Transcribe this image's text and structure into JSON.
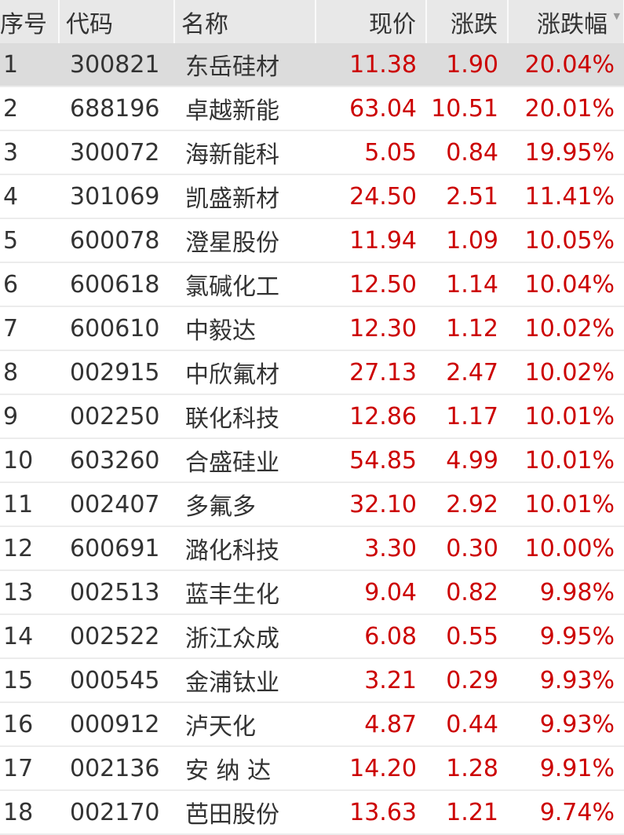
{
  "headers": [
    "序号",
    "代码",
    "名称",
    "现价",
    "涨跌",
    "涨跌幅"
  ],
  "sort_icon": "sort-desc-icon",
  "colors": {
    "up": "#cc0000",
    "header_bg": "#e8e8e8",
    "selected_bg": "#dcdcdc"
  },
  "rows": [
    [
      "1",
      "300821",
      "东岳硅材",
      "11.38",
      "1.90",
      "20.04%"
    ],
    [
      "2",
      "688196",
      "卓越新能",
      "63.04",
      "10.51",
      "20.01%"
    ],
    [
      "3",
      "300072",
      "海新能科",
      "5.05",
      "0.84",
      "19.95%"
    ],
    [
      "4",
      "301069",
      "凯盛新材",
      "24.50",
      "2.51",
      "11.41%"
    ],
    [
      "5",
      "600078",
      "澄星股份",
      "11.94",
      "1.09",
      "10.05%"
    ],
    [
      "6",
      "600618",
      "氯碱化工",
      "12.50",
      "1.14",
      "10.04%"
    ],
    [
      "7",
      "600610",
      "中毅达",
      "12.30",
      "1.12",
      "10.02%"
    ],
    [
      "8",
      "002915",
      "中欣氟材",
      "27.13",
      "2.47",
      "10.02%"
    ],
    [
      "9",
      "002250",
      "联化科技",
      "12.86",
      "1.17",
      "10.01%"
    ],
    [
      "10",
      "603260",
      "合盛硅业",
      "54.85",
      "4.99",
      "10.01%"
    ],
    [
      "11",
      "002407",
      "多氟多",
      "32.10",
      "2.92",
      "10.01%"
    ],
    [
      "12",
      "600691",
      "潞化科技",
      "3.30",
      "0.30",
      "10.00%"
    ],
    [
      "13",
      "002513",
      "蓝丰生化",
      "9.04",
      "0.82",
      "9.98%"
    ],
    [
      "14",
      "002522",
      "浙江众成",
      "6.08",
      "0.55",
      "9.95%"
    ],
    [
      "15",
      "000545",
      "金浦钛业",
      "3.21",
      "0.29",
      "9.93%"
    ],
    [
      "16",
      "000912",
      "泸天化",
      "4.87",
      "0.44",
      "9.93%"
    ],
    [
      "17",
      "002136",
      "安 纳 达",
      "14.20",
      "1.28",
      "9.91%"
    ],
    [
      "18",
      "002170",
      "芭田股份",
      "13.63",
      "1.21",
      "9.74%"
    ]
  ]
}
